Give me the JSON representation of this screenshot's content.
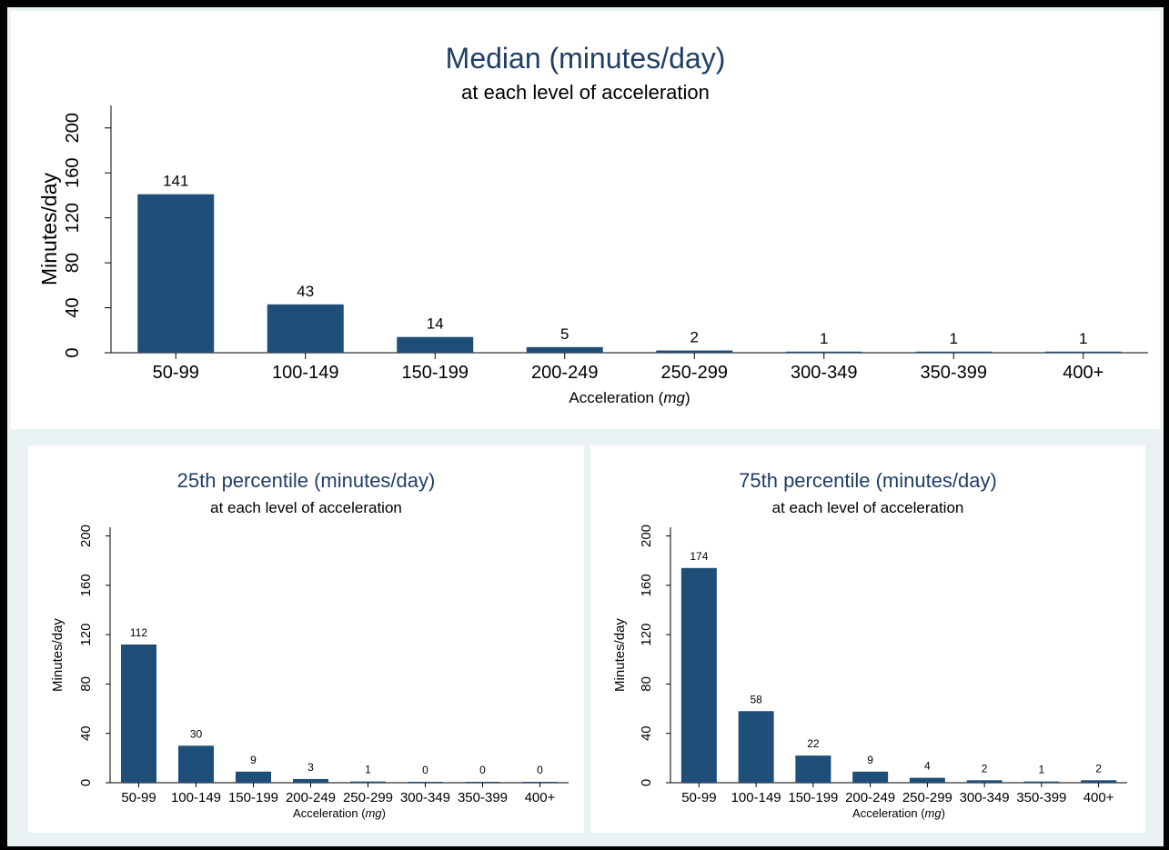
{
  "chart_data": [
    {
      "type": "bar",
      "title": "Median (minutes/day)",
      "subtitle": "at each level of acceleration",
      "xlabel_prefix": "Acceleration (",
      "xlabel_unit": "mg",
      "xlabel_suffix": ")",
      "ylabel": "Minutes/day",
      "categories": [
        "50-99",
        "100-149",
        "150-199",
        "200-249",
        "250-299",
        "300-349",
        "350-399",
        "400+"
      ],
      "values": [
        141,
        43,
        14,
        5,
        2,
        1,
        1,
        1
      ],
      "data_labels": [
        "141",
        "43",
        "14",
        "5",
        "2",
        "1",
        "1",
        "1"
      ],
      "yticks": [
        0,
        40,
        80,
        120,
        160,
        200
      ],
      "ylim": [
        0,
        220
      ],
      "grid": false,
      "bar_color": "#1f4e79",
      "title_color": "#1f3e66"
    },
    {
      "type": "bar",
      "title": "25th percentile (minutes/day)",
      "subtitle": "at each level of acceleration",
      "xlabel_prefix": "Acceleration (",
      "xlabel_unit": "mg",
      "xlabel_suffix": ")",
      "ylabel": "Minutes/day",
      "categories": [
        "50-99",
        "100-149",
        "150-199",
        "200-249",
        "250-299",
        "300-349",
        "350-399",
        "400+"
      ],
      "values": [
        112,
        30,
        9,
        3,
        1,
        0,
        0,
        0
      ],
      "data_labels": [
        "112",
        "30",
        "9",
        "3",
        "1",
        "0",
        "0",
        "0"
      ],
      "yticks": [
        0,
        40,
        80,
        120,
        160,
        200
      ],
      "ylim": [
        0,
        200
      ],
      "grid": false,
      "bar_color": "#1f4e79",
      "title_color": "#1f3e66"
    },
    {
      "type": "bar",
      "title": "75th percentile (minutes/day)",
      "subtitle": "at each level of acceleration",
      "xlabel_prefix": "Acceleration (",
      "xlabel_unit": "mg",
      "xlabel_suffix": ")",
      "ylabel": "Minutes/day",
      "categories": [
        "50-99",
        "100-149",
        "150-199",
        "200-249",
        "250-299",
        "300-349",
        "350-399",
        "400+"
      ],
      "values": [
        174,
        58,
        22,
        9,
        4,
        2,
        1,
        2
      ],
      "data_labels": [
        "174",
        "58",
        "22",
        "9",
        "4",
        "2",
        "1",
        "2"
      ],
      "yticks": [
        0,
        40,
        80,
        120,
        160,
        200
      ],
      "ylim": [
        0,
        200
      ],
      "grid": false,
      "bar_color": "#1f4e79",
      "title_color": "#1f3e66"
    }
  ]
}
